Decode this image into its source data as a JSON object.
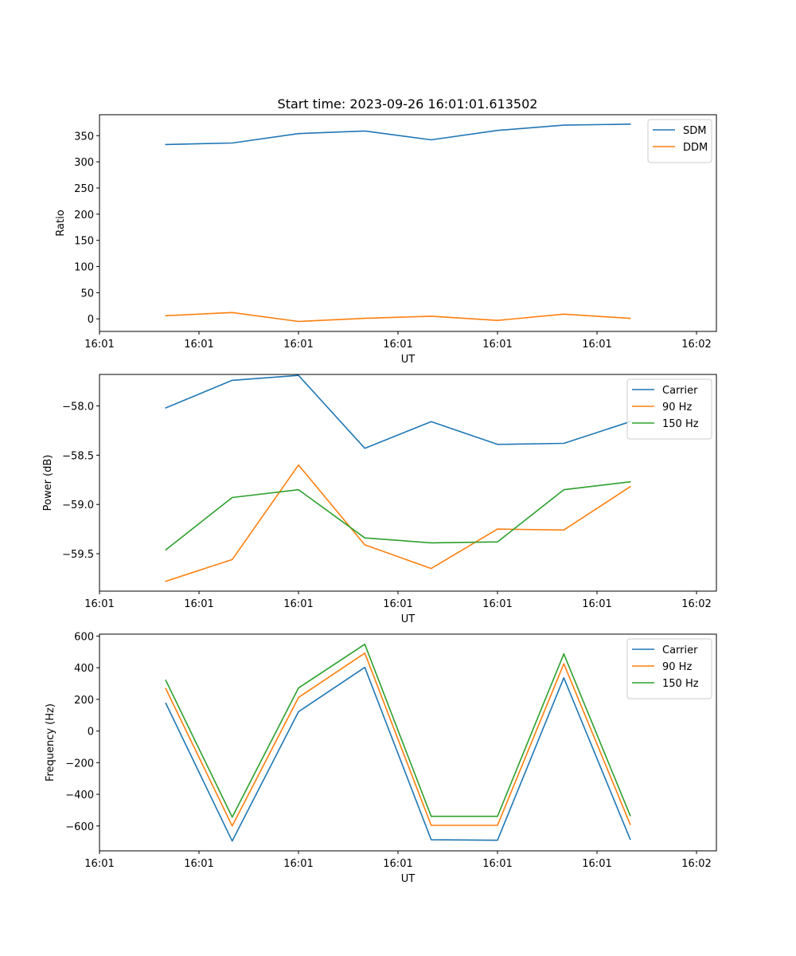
{
  "figure": {
    "title": "Start time: 2023-09-26 16:01:01.613502"
  },
  "chart_data": [
    {
      "type": "line",
      "title": "Start time: 2023-09-26 16:01:01.613502",
      "xlabel": "UT",
      "ylabel": "Ratio",
      "x_tick_labels": [
        "16:01",
        "16:01",
        "16:01",
        "16:01",
        "16:01",
        "16:01",
        "16:02"
      ],
      "x": [
        1,
        2,
        3,
        4,
        5,
        6,
        7,
        8
      ],
      "xlim": [
        0,
        9.3
      ],
      "x_ticks": [
        0,
        1.5,
        3,
        4.5,
        6,
        7.5,
        9
      ],
      "y_ticks": [
        0,
        50,
        100,
        150,
        200,
        250,
        300,
        350
      ],
      "ylim": [
        -24,
        390
      ],
      "legend": "top-right",
      "series": [
        {
          "name": "SDM",
          "color": "#1f77b4",
          "values": [
            333,
            336,
            354,
            359,
            342,
            360,
            370,
            372
          ]
        },
        {
          "name": "DDM",
          "color": "#ff7f0e",
          "values": [
            6,
            12,
            -5,
            1,
            5,
            -3,
            9,
            1
          ]
        }
      ]
    },
    {
      "type": "line",
      "xlabel": "UT",
      "ylabel": "Power (dB)",
      "x_tick_labels": [
        "16:01",
        "16:01",
        "16:01",
        "16:01",
        "16:01",
        "16:01",
        "16:02"
      ],
      "x": [
        1,
        2,
        3,
        4,
        5,
        6,
        7,
        8
      ],
      "xlim": [
        0,
        9.3
      ],
      "x_ticks": [
        0,
        1.5,
        3,
        4.5,
        6,
        7.5,
        9
      ],
      "y_ticks": [
        -58.0,
        -58.5,
        -59.0,
        -59.5
      ],
      "y_tick_labels": [
        "−58.0",
        "−58.5",
        "−59.0",
        "−59.5"
      ],
      "ylim": [
        -59.88,
        -57.68
      ],
      "legend": "top-right",
      "series": [
        {
          "name": "Carrier",
          "color": "#1f77b4",
          "values": [
            -58.02,
            -57.74,
            -57.69,
            -58.43,
            -58.16,
            -58.39,
            -58.38,
            -58.16
          ]
        },
        {
          "name": "90 Hz",
          "color": "#ff7f0e",
          "values": [
            -59.78,
            -59.56,
            -58.6,
            -59.41,
            -59.65,
            -59.25,
            -59.26,
            -58.82
          ]
        },
        {
          "name": "150 Hz",
          "color": "#2ca02c",
          "values": [
            -59.46,
            -58.93,
            -58.85,
            -59.34,
            -59.39,
            -59.38,
            -58.85,
            -58.77
          ]
        }
      ]
    },
    {
      "type": "line",
      "xlabel": "UT",
      "ylabel": "Frequency (Hz)",
      "x_tick_labels": [
        "16:01",
        "16:01",
        "16:01",
        "16:01",
        "16:01",
        "16:01",
        "16:02"
      ],
      "x": [
        1,
        2,
        3,
        4,
        5,
        6,
        7,
        8
      ],
      "xlim": [
        0,
        9.3
      ],
      "x_ticks": [
        0,
        1.5,
        3,
        4.5,
        6,
        7.5,
        9
      ],
      "y_ticks": [
        600,
        400,
        200,
        0,
        -200,
        -400,
        -600
      ],
      "y_tick_labels": [
        "600",
        "400",
        "200",
        "0",
        "−200",
        "−400",
        "−600"
      ],
      "ylim": [
        -757,
        612
      ],
      "legend": "top-right",
      "series": [
        {
          "name": "Carrier",
          "color": "#1f77b4",
          "values": [
            175,
            -695,
            122,
            402,
            -687,
            -690,
            336,
            -684
          ]
        },
        {
          "name": "90 Hz",
          "color": "#ff7f0e",
          "values": [
            267,
            -600,
            212,
            492,
            -596,
            -596,
            425,
            -590
          ]
        },
        {
          "name": "150 Hz",
          "color": "#2ca02c",
          "values": [
            320,
            -544,
            272,
            548,
            -539,
            -539,
            487,
            -534
          ]
        }
      ]
    }
  ]
}
